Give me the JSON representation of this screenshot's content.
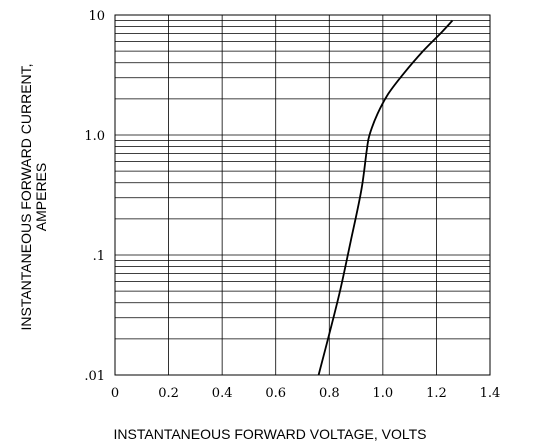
{
  "chart_data": {
    "type": "line",
    "title": "",
    "xlabel": "INSTANTANEOUS FORWARD VOLTAGE, VOLTS",
    "ylabel_lines": [
      "INSTANTANEOUS FORWARD CURRENT,",
      "AMPERES"
    ],
    "xlim": [
      0,
      1.4
    ],
    "ylim": [
      0.01,
      10
    ],
    "yscale": "log",
    "grid": true,
    "x_ticks": [
      0,
      0.2,
      0.4,
      0.6,
      0.8,
      1.0,
      1.2,
      1.4
    ],
    "x_tick_labels": [
      "0",
      "0.2",
      "0.4",
      "0.6",
      "0.8",
      "1.0",
      "1.2",
      "1.4"
    ],
    "y_ticks": [
      0.01,
      0.1,
      1.0,
      10
    ],
    "y_tick_labels": [
      ".01",
      ".1",
      "1.0",
      "10"
    ],
    "series": [
      {
        "x": [
          0.76,
          0.8,
          0.84,
          0.88,
          0.92,
          0.94,
          0.95,
          0.98,
          1.02,
          1.08,
          1.15,
          1.22,
          1.26
        ],
        "y": [
          0.01,
          0.022,
          0.05,
          0.13,
          0.35,
          0.75,
          1.0,
          1.5,
          2.2,
          3.3,
          5.0,
          7.2,
          9.0
        ]
      }
    ]
  }
}
